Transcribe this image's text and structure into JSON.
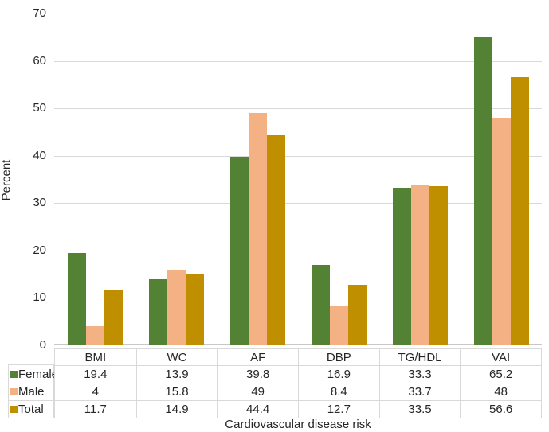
{
  "chart_data": {
    "type": "bar",
    "title": "",
    "xlabel": "Cardiovascular disease risk",
    "ylabel": "Percent",
    "ylim": [
      0,
      70
    ],
    "yticks": [
      0,
      10,
      20,
      30,
      40,
      50,
      60,
      70
    ],
    "grid": true,
    "legend_position": "table-left",
    "data_table_shown": true,
    "categories": [
      "BMI",
      "WC",
      "AF",
      "DBP",
      "TG/HDL",
      "VAI"
    ],
    "series": [
      {
        "name": "Female",
        "color": "#548235",
        "values": [
          19.4,
          13.9,
          39.8,
          16.9,
          33.3,
          65.2
        ]
      },
      {
        "name": "Male",
        "color": "#F4B183",
        "values": [
          4,
          15.8,
          49,
          8.4,
          33.7,
          48
        ]
      },
      {
        "name": "Total",
        "color": "#BF8F00",
        "values": [
          11.7,
          14.9,
          44.4,
          12.7,
          33.5,
          56.6
        ]
      }
    ]
  },
  "colors": {
    "gridline": "#d9d9d9",
    "axis_line": "#c8c8c8",
    "table_border": "#d9d9d9",
    "text": "#262626",
    "background": "#ffffff"
  }
}
